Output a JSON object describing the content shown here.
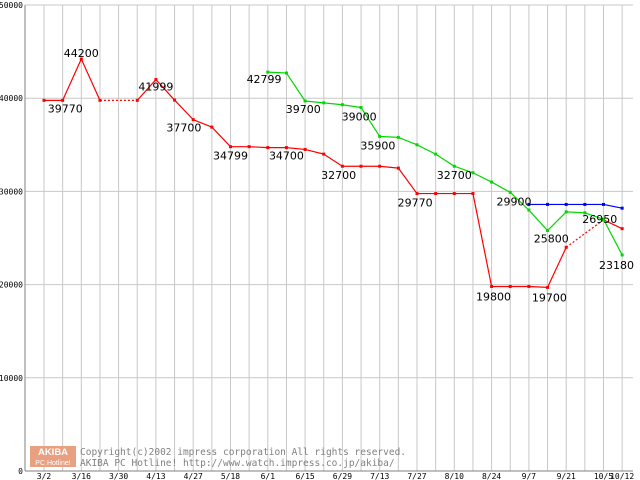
{
  "chart_data": {
    "type": "line",
    "title": "",
    "xlabel": "",
    "ylabel": "",
    "ylim": [
      0,
      50000
    ],
    "grid": true,
    "yticks": [
      0,
      10000,
      20000,
      30000,
      40000,
      50000
    ],
    "xticks": [
      "3/2",
      "3/16",
      "3/30",
      "4/13",
      "4/27",
      "5/18",
      "6/1",
      "6/15",
      "6/29",
      "7/13",
      "7/27",
      "8/10",
      "8/24",
      "9/7",
      "9/21",
      "10/5",
      "10/12"
    ],
    "xtick_index": [
      0,
      2,
      4,
      6,
      8,
      10,
      12,
      14,
      16,
      18,
      20,
      22,
      24,
      26,
      28,
      30,
      31
    ],
    "series": [
      {
        "color": "#ff0000",
        "points": [
          [
            0,
            39770
          ],
          [
            1,
            39770
          ],
          [
            2,
            44200
          ],
          [
            3,
            39770
          ],
          [
            5,
            39770
          ],
          [
            6,
            41999
          ],
          [
            7,
            39800
          ],
          [
            8,
            37700
          ],
          [
            9,
            36900
          ],
          [
            10,
            34799
          ],
          [
            11,
            34799
          ],
          [
            12,
            34700
          ],
          [
            13,
            34700
          ],
          [
            14,
            34500
          ],
          [
            15,
            34000
          ],
          [
            16,
            32700
          ],
          [
            17,
            32700
          ],
          [
            18,
            32700
          ],
          [
            19,
            32500
          ],
          [
            20,
            29770
          ],
          [
            21,
            29770
          ],
          [
            22,
            29770
          ],
          [
            23,
            29770
          ],
          [
            24,
            19800
          ],
          [
            25,
            19800
          ],
          [
            26,
            19800
          ],
          [
            27,
            19700
          ],
          [
            28,
            24000
          ],
          [
            30,
            26950
          ],
          [
            31,
            26000
          ]
        ],
        "dashed_segments": [
          [
            3,
            4
          ],
          [
            28,
            29
          ]
        ]
      },
      {
        "color": "#00d800",
        "points": [
          [
            12,
            42799
          ],
          [
            13,
            42700
          ],
          [
            14,
            39700
          ],
          [
            15,
            39500
          ],
          [
            16,
            39300
          ],
          [
            17,
            39000
          ],
          [
            18,
            35900
          ],
          [
            19,
            35800
          ],
          [
            20,
            35000
          ],
          [
            21,
            34000
          ],
          [
            22,
            32700
          ],
          [
            23,
            32000
          ],
          [
            24,
            31000
          ],
          [
            25,
            29900
          ],
          [
            26,
            28000
          ],
          [
            27,
            25800
          ],
          [
            28,
            27800
          ],
          [
            29,
            27700
          ],
          [
            30,
            27000
          ],
          [
            31,
            23180
          ]
        ],
        "dashed_segments": []
      },
      {
        "color": "#0000ff",
        "points": [
          [
            26,
            28600
          ],
          [
            27,
            28600
          ],
          [
            28,
            28600
          ],
          [
            29,
            28600
          ],
          [
            30,
            28600
          ],
          [
            31,
            28200
          ]
        ],
        "dashed_segments": []
      }
    ],
    "annotations": [
      {
        "text": "39770",
        "x": 0.2,
        "y": 39770,
        "anchor": "start",
        "dy": 12
      },
      {
        "text": "44200",
        "x": 2,
        "y": 44200,
        "anchor": "middle",
        "dy": -2
      },
      {
        "text": "41999",
        "x": 6,
        "y": 41999,
        "anchor": "middle",
        "dy": 11
      },
      {
        "text": "37700",
        "x": 7.5,
        "y": 37700,
        "anchor": "middle",
        "dy": 12
      },
      {
        "text": "34799",
        "x": 10,
        "y": 34799,
        "anchor": "middle",
        "dy": 13
      },
      {
        "text": "42799",
        "x": 11.8,
        "y": 42799,
        "anchor": "middle",
        "dy": 11
      },
      {
        "text": "34700",
        "x": 13,
        "y": 34700,
        "anchor": "middle",
        "dy": 12
      },
      {
        "text": "39700",
        "x": 13.9,
        "y": 39700,
        "anchor": "middle",
        "dy": 12
      },
      {
        "text": "39000",
        "x": 16.9,
        "y": 39000,
        "anchor": "middle",
        "dy": 13
      },
      {
        "text": "32700",
        "x": 15.8,
        "y": 32700,
        "anchor": "middle",
        "dy": 13
      },
      {
        "text": "35900",
        "x": 17.9,
        "y": 35900,
        "anchor": "middle",
        "dy": 13
      },
      {
        "text": "29770",
        "x": 19.9,
        "y": 29770,
        "anchor": "middle",
        "dy": 13
      },
      {
        "text": "32700",
        "x": 22,
        "y": 32700,
        "anchor": "middle",
        "dy": 13
      },
      {
        "text": "29900",
        "x": 25.2,
        "y": 29900,
        "anchor": "middle",
        "dy": 13
      },
      {
        "text": "19800",
        "x": 24.1,
        "y": 19800,
        "anchor": "middle",
        "dy": 14
      },
      {
        "text": "19700",
        "x": 27.1,
        "y": 19700,
        "anchor": "middle",
        "dy": 14
      },
      {
        "text": "25800",
        "x": 27.2,
        "y": 25800,
        "anchor": "middle",
        "dy": 12
      },
      {
        "text": "26950",
        "x": 29.8,
        "y": 26950,
        "anchor": "middle",
        "dy": 3
      },
      {
        "text": "23180",
        "x": 30.7,
        "y": 23180,
        "anchor": "middle",
        "dy": 14
      }
    ]
  },
  "watermark": {
    "logo_top": "AKIBA",
    "logo_bottom": "PC Hotline!",
    "line1": "Copyright(c)2002 impress corporation All rights reserved.",
    "line2": "AKIBA PC Hotline!  http://www.watch.impress.co.jp/akiba/"
  }
}
